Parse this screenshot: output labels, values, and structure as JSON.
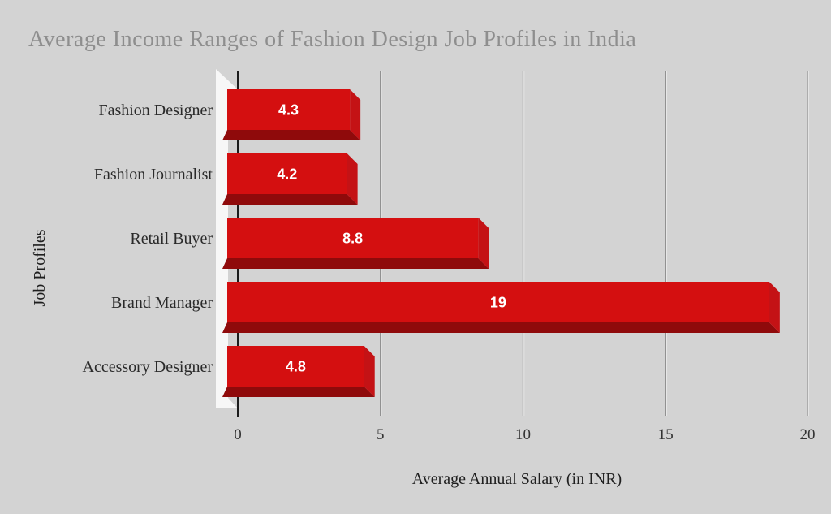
{
  "title": "Average Income Ranges of Fashion Design Job Profiles in India",
  "chart_data": {
    "type": "bar",
    "orientation": "horizontal",
    "title": "Average Income Ranges of Fashion Design Job Profiles in India",
    "categories": [
      "Fashion Designer",
      "Fashion Journalist",
      "Retail Buyer",
      "Brand Manager",
      "Accessory Designer"
    ],
    "values": [
      4.3,
      4.2,
      8.8,
      19,
      4.8
    ],
    "value_labels": [
      "4.3",
      "4.2",
      "8.8",
      "19",
      "4.8"
    ],
    "xlabel": "Average Annual Salary (in INR)",
    "ylabel": "Job Profiles",
    "xlim": [
      0,
      20
    ],
    "xticks": [
      0,
      5,
      10,
      15,
      20
    ],
    "grid": true,
    "legend": false,
    "style": "3d-beveled-bars"
  },
  "colors": {
    "background": "#d3d3d3",
    "title_text": "#8e8e8e",
    "bar_face": "#d40f10",
    "bar_bevel_side": "#c41215",
    "bar_bevel_bottom": "#8f0a0b",
    "value_text": "#ffffff",
    "category_text": "#2a2a2a",
    "tick_text": "#333333",
    "axis_line": "#1c1c1c",
    "grid_line": "#8a8a8a",
    "grid_highlight": "#e8e8e8",
    "wall_3d": "#f7f7f7"
  }
}
